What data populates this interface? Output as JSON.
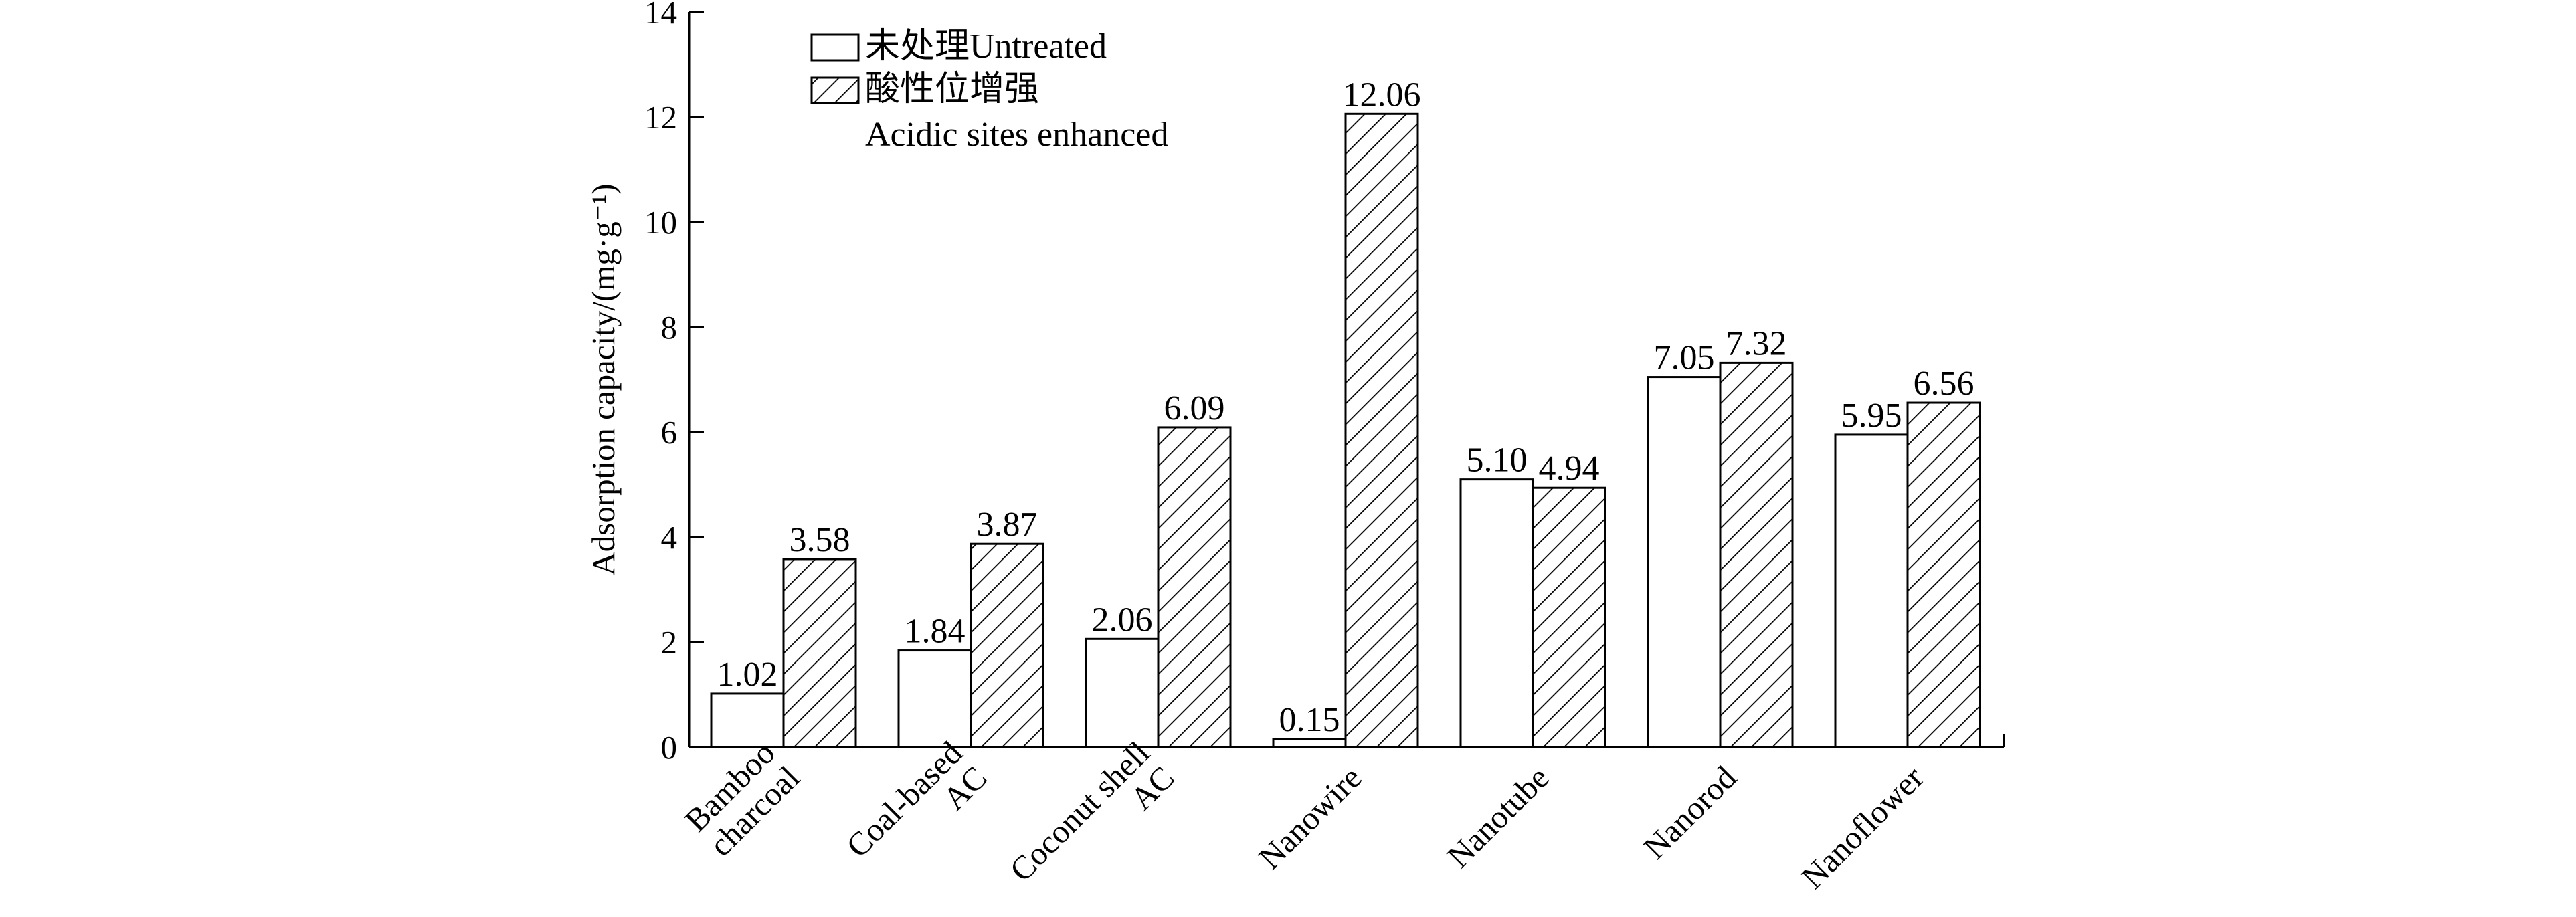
{
  "chart_data": {
    "type": "bar",
    "ylabel": "Adsorption capacity/(mg·g⁻¹)",
    "ylim": [
      0,
      14
    ],
    "yticks": [
      0,
      2,
      4,
      6,
      8,
      10,
      12,
      14
    ],
    "categories": [
      [
        "Bamboo",
        "charcoal"
      ],
      [
        "Coal-based",
        "AC"
      ],
      [
        "Coconut shell",
        "AC"
      ],
      [
        "Nanowire"
      ],
      [
        "Nanotube"
      ],
      [
        "Nanorod"
      ],
      [
        "Nanoflower"
      ]
    ],
    "series": [
      {
        "name": "未处理Untreated",
        "pattern": "none",
        "values": [
          1.02,
          1.84,
          2.06,
          0.15,
          5.1,
          7.05,
          5.95
        ],
        "labels": [
          "1.02",
          "1.84",
          "2.06",
          "0.15",
          "5.10",
          "7.05",
          "5.95"
        ]
      },
      {
        "name": "酸性位增强",
        "name_line2": "Acidic sites enhanced",
        "pattern": "hatch",
        "values": [
          3.58,
          3.87,
          6.09,
          12.06,
          4.94,
          7.32,
          6.56
        ],
        "labels": [
          "3.58",
          "3.87",
          "6.09",
          "12.06",
          "4.94",
          "7.32",
          "6.56"
        ]
      }
    ],
    "legend_position": "top-left",
    "grid": false,
    "colors": {
      "stroke": "#000000",
      "fill": "#ffffff"
    }
  }
}
